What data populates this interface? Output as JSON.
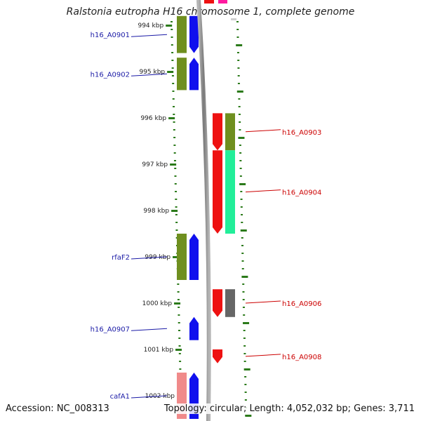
{
  "title": "Ralstonia eutropha H16 chromosome 1, complete genome",
  "footer": {
    "accession": "Accession: NC_008313",
    "summary": "Topology: circular; Length: 4,052,032 bp; Genes: 3,711"
  },
  "colors": {
    "backbone": "#8a8a8a",
    "tick": "#2b7a1a",
    "left_label": "#1a1aa6",
    "right_label": "#cc0000"
  },
  "scale": {
    "unit": "kbp",
    "ticks": [
      {
        "kbp": 994,
        "label": "994 kbp"
      },
      {
        "kbp": 995,
        "label": "995 kbp"
      },
      {
        "kbp": 996,
        "label": "996 kbp"
      },
      {
        "kbp": 997,
        "label": "997 kbp"
      },
      {
        "kbp": 998,
        "label": "998 kbp"
      },
      {
        "kbp": 999,
        "label": "999 kbp"
      },
      {
        "kbp": 1000,
        "label": "1000 kbp"
      },
      {
        "kbp": 1001,
        "label": "1001 kbp"
      },
      {
        "kbp": 1002,
        "label": "1002 kbp"
      }
    ]
  },
  "features": [
    {
      "id": "h16_A0901",
      "side": "left",
      "strand": "-",
      "start": 993.8,
      "end": 994.6,
      "color": "#6f8f1f",
      "bar": "#1010ee",
      "label": "h16_A0901"
    },
    {
      "id": "h16_A0902",
      "side": "left",
      "strand": "+",
      "start": 994.7,
      "end": 995.4,
      "color": "#6f8f1f",
      "bar": "#1010ee",
      "label": "h16_A0902"
    },
    {
      "id": "h16_A0903",
      "side": "right",
      "strand": "-",
      "start": 995.9,
      "end": 996.7,
      "color": "#ee1111",
      "bar": "#6f8f1f",
      "label": "h16_A0903"
    },
    {
      "id": "h16_A0904",
      "side": "right",
      "strand": "-",
      "start": 996.7,
      "end": 998.5,
      "color": "#ee1111",
      "bar": "#22ee99",
      "label": "h16_A0904"
    },
    {
      "id": "rfaF2",
      "side": "left",
      "strand": "+",
      "start": 998.5,
      "end": 999.5,
      "color": "#6f8f1f",
      "bar": "#1010ee",
      "label": "rfaF2"
    },
    {
      "id": "h16_A0906",
      "side": "right",
      "strand": "-",
      "start": 999.7,
      "end": 1000.3,
      "color": "#ee1111",
      "bar": "#666666",
      "label": "h16_A0906"
    },
    {
      "id": "h16_A0907",
      "side": "left",
      "strand": "+",
      "start": 1000.3,
      "end": 1000.8,
      "color": null,
      "bar": "#1010ee",
      "label": "h16_A0907"
    },
    {
      "id": "h16_A0908",
      "side": "right",
      "strand": "-",
      "start": 1001.0,
      "end": 1001.3,
      "color": "#ee1111",
      "bar": null,
      "label": "h16_A0908"
    },
    {
      "id": "cafA1",
      "side": "left",
      "strand": "+",
      "start": 1001.5,
      "end": 1002.5,
      "color": "#f08a8a",
      "bar": "#1010ee",
      "label": "cafA1"
    }
  ]
}
